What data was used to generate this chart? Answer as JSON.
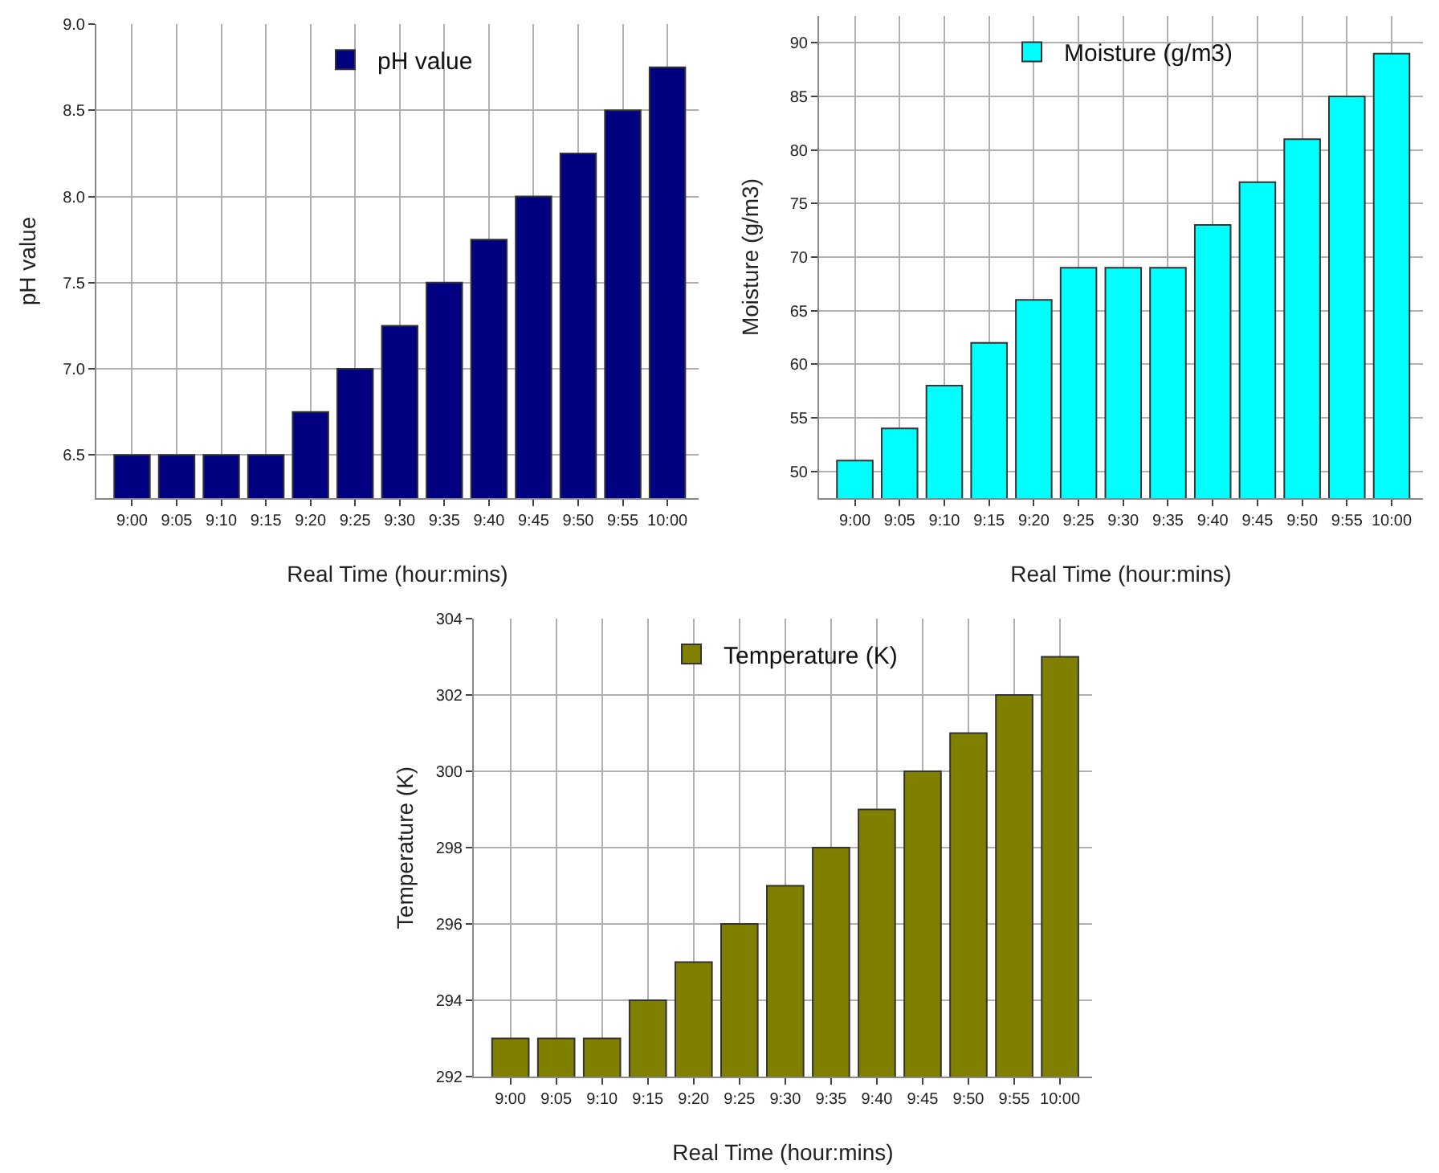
{
  "chart_data": [
    {
      "type": "bar",
      "xlabel": "Real Time (hour:mins)",
      "ylabel": "pH value",
      "categories": [
        "9:00",
        "9:05",
        "9:10",
        "9:15",
        "9:20",
        "9:25",
        "9:30",
        "9:35",
        "9:40",
        "9:45",
        "9:50",
        "9:55",
        "10:00"
      ],
      "series": [
        {
          "name": "pH value",
          "color": "#000080",
          "values": [
            6.5,
            6.5,
            6.5,
            6.5,
            6.75,
            7.0,
            7.25,
            7.5,
            7.75,
            8.0,
            8.25,
            8.5,
            8.75
          ]
        }
      ],
      "ylim": [
        6.25,
        9.0
      ],
      "yticks": [
        {
          "value": 6.5,
          "label": "6.5"
        },
        {
          "value": 7,
          "label": "7.0"
        },
        {
          "value": 7.5,
          "label": "7.5"
        },
        {
          "value": 8,
          "label": "8.0"
        },
        {
          "value": 8.5,
          "label": "8.5"
        },
        {
          "value": 9,
          "label": "9.0"
        }
      ],
      "grid": true,
      "legend": "top"
    },
    {
      "type": "bar",
      "xlabel": "Real Time (hour:mins)",
      "ylabel": "Moisture (g/m3)",
      "categories": [
        "9:00",
        "9:05",
        "9:10",
        "9:15",
        "9:20",
        "9:25",
        "9:30",
        "9:35",
        "9:40",
        "9:45",
        "9:50",
        "9:55",
        "10:00"
      ],
      "series": [
        {
          "name": "Moisture (g/m3)",
          "color": "#00ffff",
          "values": [
            51,
            54,
            58,
            62,
            66,
            69,
            69,
            69,
            73,
            77,
            81,
            85,
            89
          ]
        }
      ],
      "ylim": [
        47.5,
        92.5
      ],
      "yticks": [
        50,
        55,
        60,
        65,
        70,
        75,
        80,
        85,
        90
      ],
      "grid": true,
      "legend": "top"
    },
    {
      "type": "bar",
      "xlabel": "Real Time (hour:mins)",
      "ylabel": "Temperature (K)",
      "categories": [
        "9:00",
        "9:05",
        "9:10",
        "9:15",
        "9:20",
        "9:25",
        "9:30",
        "9:35",
        "9:40",
        "9:45",
        "9:50",
        "9:55",
        "10:00"
      ],
      "series": [
        {
          "name": "Temperature (K)",
          "color": "#808000",
          "values": [
            293,
            293,
            293,
            294,
            295,
            296,
            297,
            298,
            299,
            300,
            301,
            302,
            303
          ]
        }
      ],
      "ylim": [
        292,
        304
      ],
      "yticks": [
        292,
        294,
        296,
        298,
        300,
        302,
        304
      ],
      "grid": true,
      "legend": "top"
    }
  ]
}
